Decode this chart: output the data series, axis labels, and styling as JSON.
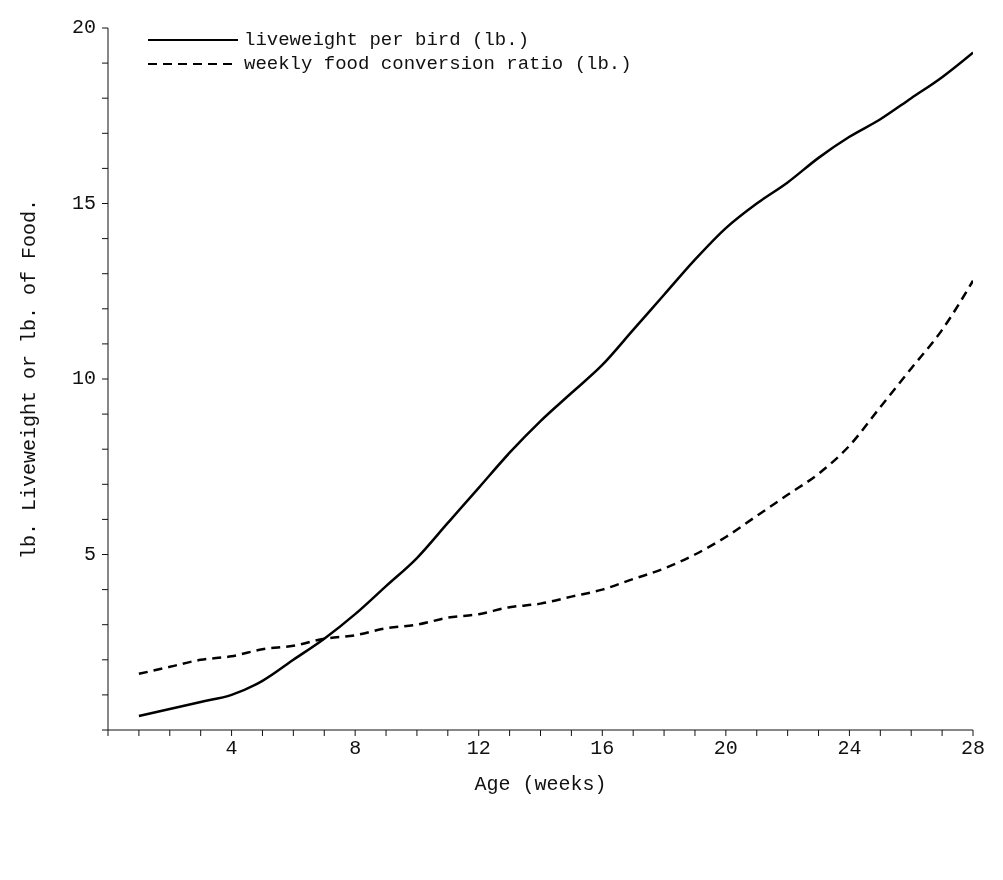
{
  "chart_data": {
    "type": "line",
    "xlabel": "Age (weeks)",
    "ylabel": "lb. Liveweight or lb. of Food.",
    "x": [
      1,
      2,
      3,
      4,
      5,
      6,
      7,
      8,
      9,
      10,
      11,
      12,
      13,
      14,
      15,
      16,
      17,
      18,
      19,
      20,
      21,
      22,
      23,
      24,
      25,
      26,
      27,
      28
    ],
    "series": [
      {
        "name": "liveweight per bird (lb.)",
        "color": "#000000",
        "line_style": "solid",
        "values": [
          0.4,
          0.6,
          0.8,
          1.0,
          1.4,
          2.0,
          2.6,
          3.3,
          4.1,
          4.9,
          5.9,
          6.9,
          7.9,
          8.8,
          9.6,
          10.4,
          11.4,
          12.4,
          13.4,
          14.3,
          15.0,
          15.6,
          16.3,
          16.9,
          17.4,
          18.0,
          18.6,
          19.3
        ]
      },
      {
        "name": "weekly food conversion ratio (lb.)",
        "color": "#000000",
        "line_style": "dashed",
        "values": [
          1.6,
          1.8,
          2.0,
          2.1,
          2.3,
          2.4,
          2.6,
          2.7,
          2.9,
          3.0,
          3.2,
          3.3,
          3.5,
          3.6,
          3.8,
          4.0,
          4.3,
          4.6,
          5.0,
          5.5,
          6.1,
          6.7,
          7.3,
          8.1,
          9.2,
          10.3,
          11.4,
          12.8
        ]
      }
    ],
    "xlim": [
      0,
      28
    ],
    "xticks": [
      {
        "value": 0,
        "label": null
      },
      {
        "value": 1,
        "label": null
      },
      {
        "value": 2,
        "label": null
      },
      {
        "value": 3,
        "label": null
      },
      4,
      {
        "value": 5,
        "label": null
      },
      {
        "value": 6,
        "label": null
      },
      {
        "value": 7,
        "label": null
      },
      8,
      {
        "value": 9,
        "label": null
      },
      {
        "value": 10,
        "label": null
      },
      {
        "value": 11,
        "label": null
      },
      12,
      {
        "value": 13,
        "label": null
      },
      {
        "value": 14,
        "label": null
      },
      {
        "value": 15,
        "label": null
      },
      16,
      {
        "value": 17,
        "label": null
      },
      {
        "value": 18,
        "label": null
      },
      {
        "value": 19,
        "label": null
      },
      20,
      {
        "value": 21,
        "label": null
      },
      {
        "value": 22,
        "label": null
      },
      {
        "value": 23,
        "label": null
      },
      24,
      {
        "value": 25,
        "label": null
      },
      {
        "value": 26,
        "label": null
      },
      {
        "value": 27,
        "label": null
      },
      28
    ],
    "ylim": [
      0,
      20
    ],
    "yticks": [
      {
        "value": 0,
        "label": null
      },
      {
        "value": 1,
        "label": null
      },
      {
        "value": 2,
        "label": null
      },
      {
        "value": 3,
        "label": null
      },
      {
        "value": 4,
        "label": null
      },
      5,
      {
        "value": 6,
        "label": null
      },
      {
        "value": 7,
        "label": null
      },
      {
        "value": 8,
        "label": null
      },
      {
        "value": 9,
        "label": null
      },
      10,
      {
        "value": 11,
        "label": null
      },
      {
        "value": 12,
        "label": null
      },
      {
        "value": 13,
        "label": null
      },
      {
        "value": 14,
        "label": null
      },
      15,
      {
        "value": 16,
        "label": null
      },
      {
        "value": 17,
        "label": null
      },
      {
        "value": 18,
        "label": null
      },
      {
        "value": 19,
        "label": null
      },
      20
    ],
    "grid": false,
    "legend": "top left",
    "marker": "none"
  }
}
